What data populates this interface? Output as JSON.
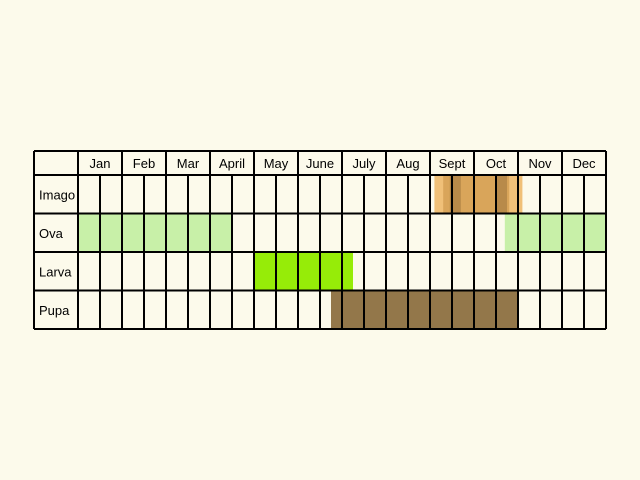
{
  "colors": {
    "background": "#fcfaeb",
    "grid": "#000000",
    "ova": "#c8f0a8",
    "larva": "#96ec08",
    "pupa": "#93774a",
    "imago_light": "#f0c078",
    "imago_mid": "#d9a55a",
    "imago_dark": "#b88a4a"
  },
  "months": [
    "Jan",
    "Feb",
    "Mar",
    "April",
    "May",
    "June",
    "July",
    "Aug",
    "Sept",
    "Oct",
    "Nov",
    "Dec"
  ],
  "stages": [
    {
      "label": "Imago",
      "periods": [
        {
          "start": 8.1,
          "end": 10.1,
          "color": "imago_light"
        },
        {
          "start": 8.3,
          "end": 9.8,
          "color": "imago_mid"
        },
        {
          "start": 8.45,
          "end": 8.7,
          "color": "imago_dark"
        },
        {
          "start": 9.5,
          "end": 9.75,
          "color": "imago_dark"
        }
      ]
    },
    {
      "label": "Ova",
      "periods": [
        {
          "start": 0,
          "end": 3.5,
          "color": "ova"
        },
        {
          "start": 9.7,
          "end": 12,
          "color": "ova"
        }
      ]
    },
    {
      "label": "Larva",
      "periods": [
        {
          "start": 4,
          "end": 6.25,
          "color": "larva"
        }
      ]
    },
    {
      "label": "Pupa",
      "periods": [
        {
          "start": 5.75,
          "end": 10,
          "color": "pupa"
        }
      ]
    }
  ]
}
